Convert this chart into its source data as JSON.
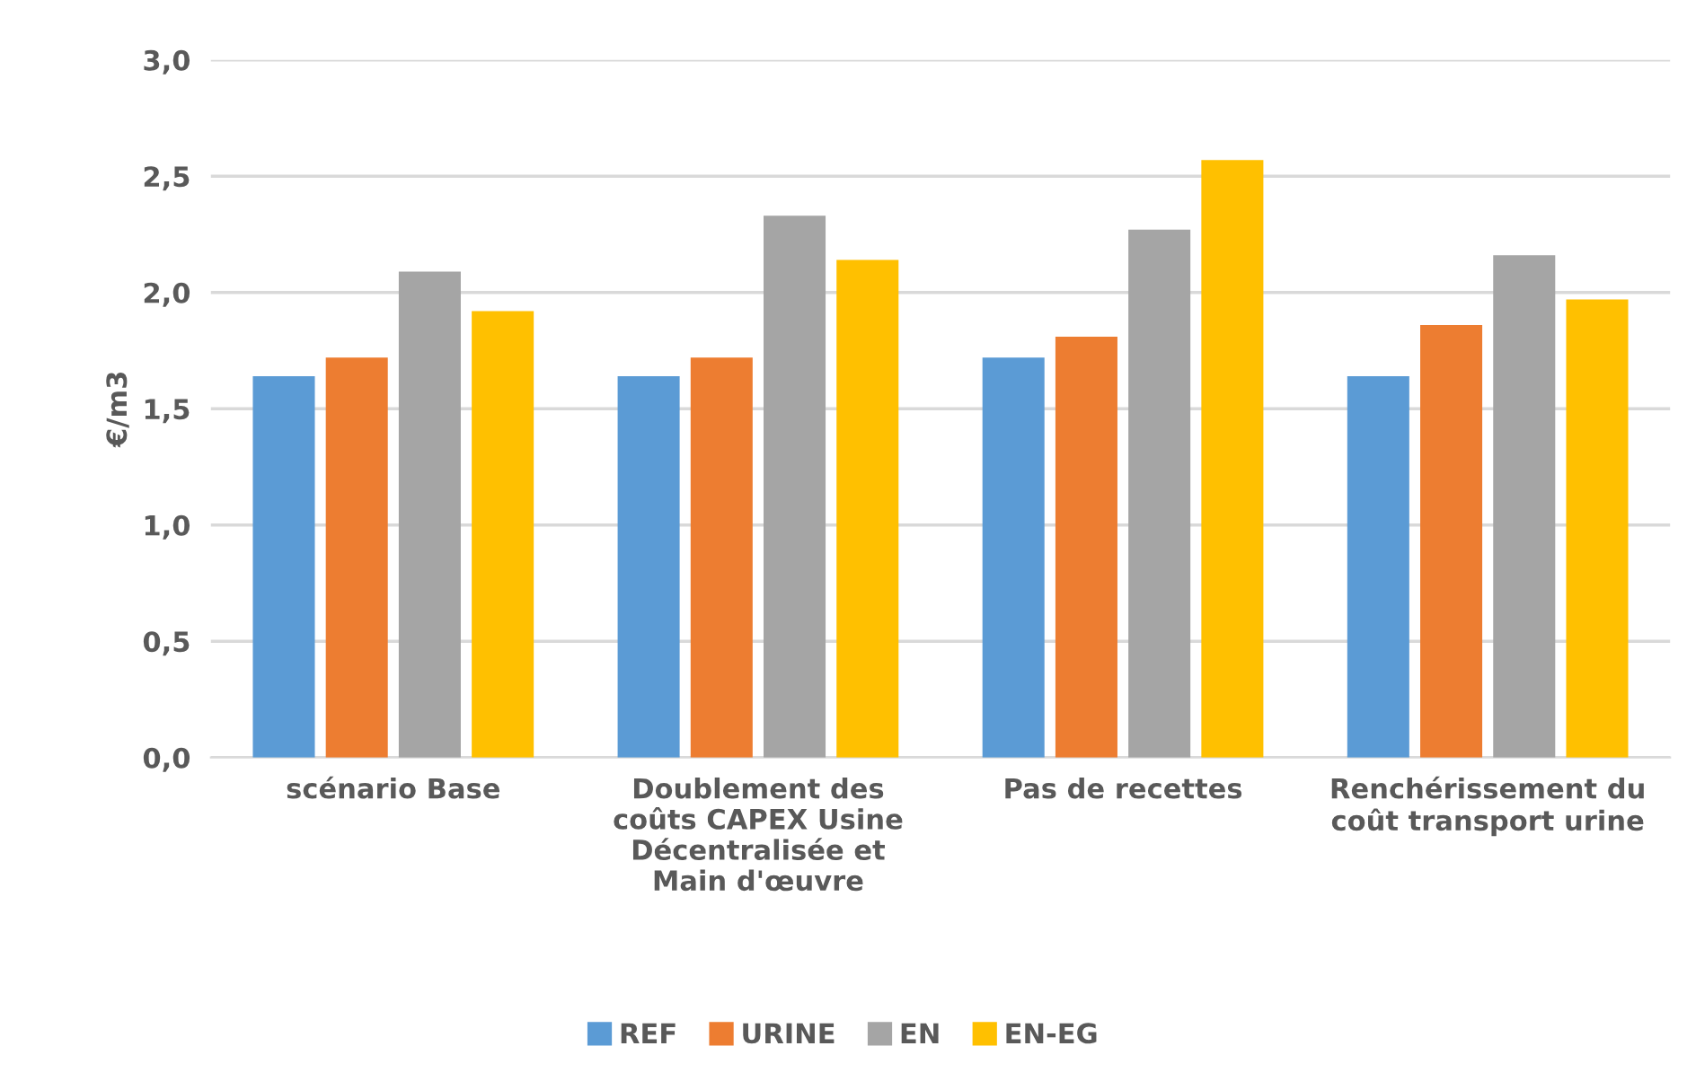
{
  "chart_data": {
    "type": "bar",
    "ylabel": "€/m3",
    "categories": [
      "scénario Base",
      "Doublement des\ncoûts CAPEX Usine\nDécentralisée et\nMain d'œuvre",
      "Pas de recettes",
      "Renchérissement du\ncoût transport urine"
    ],
    "series": [
      {
        "name": "REF",
        "color": "#5b9bd5",
        "values": [
          1.64,
          1.64,
          1.72,
          1.64
        ]
      },
      {
        "name": "URINE",
        "color": "#ed7d31",
        "values": [
          1.72,
          1.72,
          1.81,
          1.86
        ]
      },
      {
        "name": "EN",
        "color": "#a5a5a5",
        "values": [
          2.09,
          2.33,
          2.27,
          2.16
        ]
      },
      {
        "name": "EN-EG",
        "color": "#ffc000",
        "values": [
          1.92,
          2.14,
          2.57,
          1.97
        ]
      }
    ],
    "ylim": [
      0,
      3
    ],
    "yticks": [
      {
        "value": 0,
        "label": "0,0"
      },
      {
        "value": 0.5,
        "label": "0,5"
      },
      {
        "value": 1,
        "label": "1,0"
      },
      {
        "value": 1.5,
        "label": "1,5"
      },
      {
        "value": 2,
        "label": "2,0"
      },
      {
        "value": 2.5,
        "label": "2,5"
      },
      {
        "value": 3,
        "label": "3,0"
      }
    ],
    "grid": "y",
    "legend": "bottom"
  }
}
